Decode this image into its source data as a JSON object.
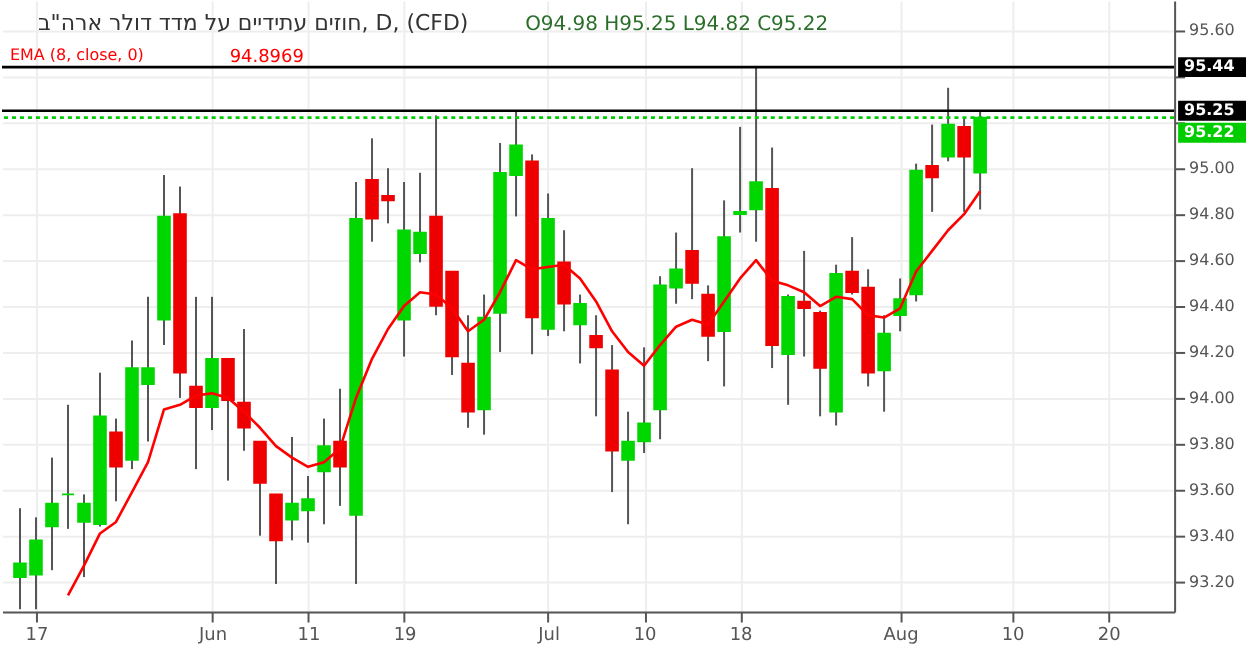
{
  "chart_data": {
    "type": "candlestick",
    "title": "חוזים עתידיים על מדד דולר ארה\"ב, D, (CFD)",
    "annotations": [
      "O94.98 H95.25 L94.82 C95.22",
      "94.8969"
    ],
    "categories": [
      null,
      "17",
      null,
      null,
      null,
      null,
      null,
      null,
      null,
      null,
      null,
      null,
      "Jun",
      null,
      null,
      null,
      null,
      null,
      "11",
      null,
      null,
      null,
      null,
      null,
      "19",
      null,
      null,
      null,
      null,
      null,
      null,
      null,
      null,
      "Jul",
      null,
      null,
      null,
      null,
      null,
      "10",
      null,
      null,
      null,
      null,
      null,
      "18",
      null,
      null,
      null,
      null,
      null,
      null,
      null,
      null,
      null,
      "Aug",
      null,
      null,
      null,
      null,
      null,
      null,
      "10",
      null,
      null,
      null,
      null,
      null,
      "20",
      null,
      null,
      null
    ],
    "ohlc": [
      [
        93.22,
        93.52,
        93.08,
        93.28
      ],
      [
        93.23,
        93.48,
        93.08,
        93.38
      ],
      [
        93.44,
        93.74,
        93.25,
        93.54
      ],
      [
        93.58,
        93.97,
        93.43,
        93.58
      ],
      [
        93.46,
        93.58,
        93.22,
        93.54
      ],
      [
        93.45,
        94.11,
        93.44,
        93.92
      ],
      [
        93.85,
        93.91,
        93.55,
        93.7
      ],
      [
        93.73,
        94.25,
        93.69,
        94.13
      ],
      [
        94.06,
        94.44,
        93.81,
        94.13
      ],
      [
        94.34,
        94.97,
        94.23,
        94.79
      ],
      [
        94.8,
        94.92,
        94.0,
        94.11
      ],
      [
        94.05,
        94.44,
        93.69,
        93.96
      ],
      [
        93.96,
        94.44,
        93.86,
        94.17
      ],
      [
        94.17,
        94.17,
        93.64,
        93.99
      ],
      [
        93.98,
        94.3,
        93.77,
        93.87
      ],
      [
        93.81,
        93.81,
        93.4,
        93.63
      ],
      [
        93.58,
        93.58,
        93.19,
        93.38
      ],
      [
        93.47,
        93.83,
        93.38,
        93.54
      ],
      [
        93.51,
        93.66,
        93.37,
        93.56
      ],
      [
        93.68,
        93.91,
        93.45,
        93.79
      ],
      [
        93.81,
        94.04,
        93.53,
        93.7
      ],
      [
        93.49,
        94.94,
        93.19,
        94.78
      ],
      [
        94.95,
        95.13,
        94.68,
        94.78
      ],
      [
        94.88,
        95.0,
        94.76,
        94.86
      ],
      [
        94.34,
        94.94,
        94.18,
        94.73
      ],
      [
        94.63,
        94.98,
        94.59,
        94.72
      ],
      [
        94.79,
        95.23,
        94.36,
        94.4
      ],
      [
        94.55,
        94.55,
        94.1,
        94.18
      ],
      [
        94.15,
        94.36,
        93.87,
        93.94
      ],
      [
        93.95,
        94.45,
        93.84,
        94.35
      ],
      [
        94.37,
        95.11,
        94.2,
        94.98
      ],
      [
        94.97,
        95.25,
        94.79,
        95.1
      ],
      [
        95.03,
        95.06,
        94.19,
        94.35
      ],
      [
        94.3,
        94.89,
        94.27,
        94.78
      ],
      [
        94.59,
        94.73,
        94.29,
        94.41
      ],
      [
        94.32,
        94.45,
        94.15,
        94.41
      ],
      [
        94.27,
        94.36,
        93.92,
        94.22
      ],
      [
        94.12,
        94.23,
        93.59,
        93.77
      ],
      [
        93.73,
        93.94,
        93.45,
        93.81
      ],
      [
        93.81,
        94.22,
        93.76,
        93.89
      ],
      [
        93.95,
        94.53,
        93.82,
        94.49
      ],
      [
        94.48,
        94.72,
        94.41,
        94.56
      ],
      [
        94.64,
        95.0,
        94.43,
        94.5
      ],
      [
        94.45,
        94.49,
        94.16,
        94.27
      ],
      [
        94.29,
        94.86,
        94.05,
        94.7
      ],
      [
        94.8,
        95.18,
        94.72,
        94.81
      ],
      [
        94.82,
        95.44,
        94.68,
        94.94
      ],
      [
        94.91,
        95.09,
        94.13,
        94.23
      ],
      [
        94.19,
        94.45,
        93.97,
        94.44
      ],
      [
        94.42,
        94.64,
        94.18,
        94.39
      ],
      [
        94.37,
        94.38,
        93.92,
        94.13
      ],
      [
        93.94,
        94.58,
        93.88,
        94.54
      ],
      [
        94.55,
        94.7,
        94.45,
        94.46
      ],
      [
        94.48,
        94.56,
        94.05,
        94.11
      ],
      [
        94.12,
        94.36,
        93.94,
        94.28
      ],
      [
        94.36,
        94.52,
        94.29,
        94.43
      ],
      [
        94.45,
        95.02,
        94.42,
        94.99
      ],
      [
        95.01,
        95.19,
        94.81,
        94.96
      ],
      [
        95.05,
        95.35,
        95.03,
        95.19
      ],
      [
        95.18,
        95.22,
        94.81,
        95.05
      ],
      [
        94.98,
        95.25,
        94.82,
        95.22
      ],
      null,
      null,
      null,
      null,
      null,
      null,
      null,
      null,
      null,
      null,
      null
    ],
    "colors": [
      "#00d600",
      "#00d600",
      "#00d600",
      "#00d600",
      "#00d600",
      "#00d600",
      "#ee0000",
      "#00d600",
      "#00d600",
      "#00d600",
      "#ee0000",
      "#ee0000",
      "#00d600",
      "#ee0000",
      "#ee0000",
      "#ee0000",
      "#ee0000",
      "#00d600",
      "#00d600",
      "#00d600",
      "#ee0000",
      "#00d600",
      "#ee0000",
      "#ee0000",
      "#00d600",
      "#00d600",
      "#ee0000",
      "#ee0000",
      "#ee0000",
      "#00d600",
      "#00d600",
      "#00d600",
      "#ee0000",
      "#00d600",
      "#ee0000",
      "#00d600",
      "#ee0000",
      "#ee0000",
      "#00d600",
      "#00d600",
      "#00d600",
      "#00d600",
      "#ee0000",
      "#ee0000",
      "#00d600",
      "#00d600",
      "#00d600",
      "#ee0000",
      "#00d600",
      "#ee0000",
      "#ee0000",
      "#00d600",
      "#ee0000",
      "#ee0000",
      "#00d600",
      "#00d600",
      "#00d600",
      "#ee0000",
      "#00d600",
      "#ee0000",
      "#00d600",
      null,
      null,
      null,
      null,
      null,
      null,
      null,
      null,
      null,
      null,
      null
    ],
    "series": [
      {
        "name": "EMA (8, close, 0)",
        "type": "line",
        "color": "#ff0000",
        "values": [
          null,
          null,
          null,
          93.14,
          93.27,
          93.41,
          93.46,
          93.59,
          93.72,
          93.95,
          93.97,
          94.01,
          94.02,
          94.0,
          93.94,
          93.87,
          93.79,
          93.74,
          93.7,
          93.72,
          93.78,
          94.0,
          94.17,
          94.3,
          94.4,
          94.46,
          94.45,
          94.39,
          94.29,
          94.34,
          94.46,
          94.6,
          94.56,
          94.57,
          94.58,
          94.52,
          94.42,
          94.29,
          94.2,
          94.14,
          94.23,
          94.31,
          94.34,
          94.32,
          94.42,
          94.52,
          94.6,
          94.51,
          94.49,
          94.46,
          94.4,
          94.44,
          94.43,
          94.36,
          94.35,
          94.39,
          94.55,
          94.64,
          94.73,
          94.8,
          94.9,
          null,
          null,
          null,
          null,
          null,
          null,
          null,
          null,
          null,
          null,
          null
        ]
      }
    ],
    "ylim": [
      93.07,
      95.73
    ],
    "yticks": [
      {
        "value": 93.2,
        "label": "93.20"
      },
      {
        "value": 93.4,
        "label": "93.40"
      },
      {
        "value": 93.6,
        "label": "93.60"
      },
      {
        "value": 93.8,
        "label": "93.80"
      },
      {
        "value": 94.0,
        "label": "94.00"
      },
      {
        "value": 94.2,
        "label": "94.20"
      },
      {
        "value": 94.4,
        "label": "94.40"
      },
      {
        "value": 94.6,
        "label": "94.60"
      },
      {
        "value": 94.8,
        "label": "94.80"
      },
      {
        "value": 95.0,
        "label": "95.00"
      },
      {
        "value": 95.2,
        "label": null
      },
      {
        "value": 95.4,
        "label": null
      },
      {
        "value": 95.6,
        "label": "95.60"
      }
    ],
    "ref_lines": [
      {
        "axis": "y",
        "value": 95.44,
        "label": "95.44",
        "color": "#000000"
      },
      {
        "axis": "y",
        "value": 95.25,
        "label": "95.25",
        "color": "#000000"
      },
      {
        "axis": "y",
        "value": 95.22,
        "label": "95.22",
        "color": "#00cc00",
        "line_style": "dotted"
      }
    ],
    "grid": true
  }
}
